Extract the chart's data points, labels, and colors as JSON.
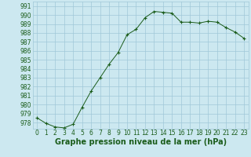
{
  "x": [
    0,
    1,
    2,
    3,
    4,
    5,
    6,
    7,
    8,
    9,
    10,
    11,
    12,
    13,
    14,
    15,
    16,
    17,
    18,
    19,
    20,
    21,
    22,
    23
  ],
  "y": [
    978.5,
    977.9,
    977.5,
    977.4,
    977.8,
    979.7,
    981.5,
    983.0,
    984.5,
    985.8,
    987.8,
    988.4,
    989.7,
    990.4,
    990.3,
    990.2,
    989.2,
    989.2,
    989.1,
    989.3,
    989.2,
    988.6,
    988.1,
    987.4
  ],
  "line_color": "#1a5c1a",
  "marker": "+",
  "marker_color": "#1a5c1a",
  "bg_color": "#cce8f0",
  "grid_color": "#a0c8d8",
  "ylabel_ticks": [
    978,
    979,
    980,
    981,
    982,
    983,
    984,
    985,
    986,
    987,
    988,
    989,
    990,
    991
  ],
  "xlabel": "Graphe pression niveau de la mer (hPa)",
  "xlabel_fontsize": 7,
  "tick_fontsize": 5.5,
  "ylim": [
    977.3,
    991.5
  ],
  "xlim": [
    -0.5,
    23.5
  ]
}
